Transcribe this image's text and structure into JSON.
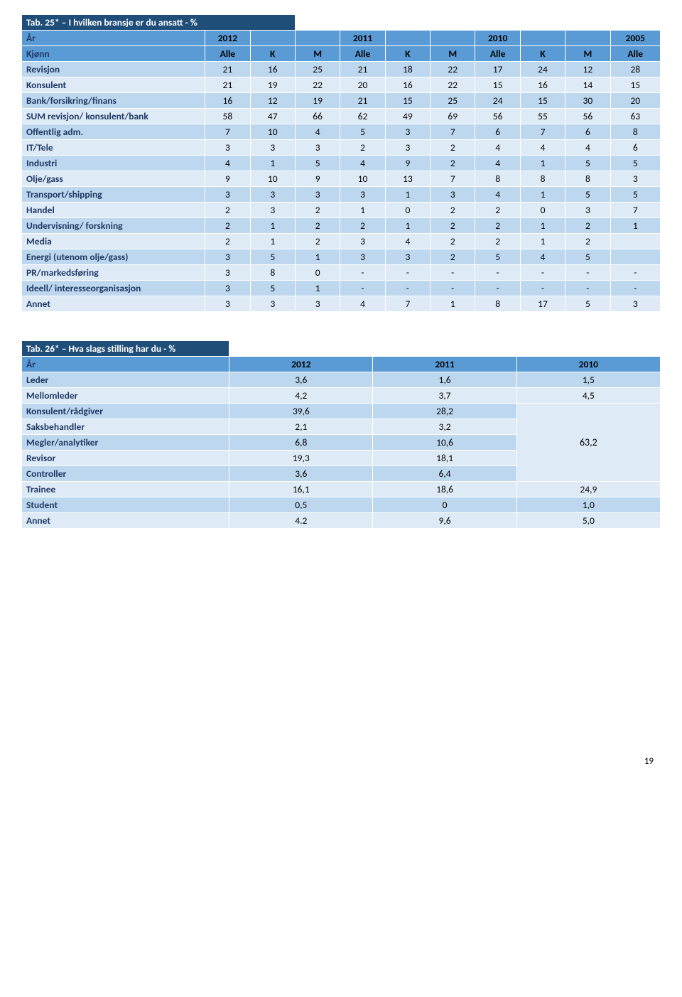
{
  "colors": {
    "darkBlue": "#1f4e79",
    "midBlue": "#5b9bd5",
    "lightBlue": "#bdd7ee",
    "paleBlue": "#deebf7",
    "rowLabelText": "#1f3864",
    "white": "#ffffff",
    "black": "#000000"
  },
  "table1": {
    "title": "Tab. 25* – I hvilken bransje er du ansatt - %",
    "yearRow": {
      "label": "År",
      "cells": [
        "2012",
        "",
        "",
        "2011",
        "",
        "",
        "2010",
        "",
        "",
        "2005"
      ]
    },
    "kjRow": {
      "label": "Kjønn",
      "cells": [
        "Alle",
        "K",
        "M",
        "Alle",
        "K",
        "M",
        "Alle",
        "K",
        "M",
        "Alle"
      ]
    },
    "rows": [
      {
        "label": "Revisjon",
        "cells": [
          "21",
          "16",
          "25",
          "21",
          "18",
          "22",
          "17",
          "24",
          "12",
          "28"
        ]
      },
      {
        "label": "Konsulent",
        "cells": [
          "21",
          "19",
          "22",
          "20",
          "16",
          "22",
          "15",
          "16",
          "14",
          "15"
        ]
      },
      {
        "label": "Bank/forsikring/finans",
        "cells": [
          "16",
          "12",
          "19",
          "21",
          "15",
          "25",
          "24",
          "15",
          "30",
          "20"
        ]
      },
      {
        "label": "SUM   revisjon/ konsulent/bank",
        "cells": [
          "58",
          "47",
          "66",
          "62",
          "49",
          "69",
          "56",
          "55",
          "56",
          "63"
        ]
      },
      {
        "label": "Offentlig adm.",
        "cells": [
          "7",
          "10",
          "4",
          "5",
          "3",
          "7",
          "6",
          "7",
          "6",
          "8"
        ]
      },
      {
        "label": "IT/Tele",
        "cells": [
          "3",
          "3",
          "3",
          "2",
          "3",
          "2",
          "4",
          "4",
          "4",
          "6"
        ]
      },
      {
        "label": "Industri",
        "cells": [
          "4",
          "1",
          "5",
          "4",
          "9",
          "2",
          "4",
          "1",
          "5",
          "5"
        ]
      },
      {
        "label": "Olje/gass",
        "cells": [
          "9",
          "10",
          "9",
          "10",
          "13",
          "7",
          "8",
          "8",
          "8",
          "3"
        ]
      },
      {
        "label": "Transport/shipping",
        "cells": [
          "3",
          "3",
          "3",
          "3",
          "1",
          "3",
          "4",
          "1",
          "5",
          "5"
        ]
      },
      {
        "label": "Handel",
        "cells": [
          "2",
          "3",
          "2",
          "1",
          "0",
          "2",
          "2",
          "0",
          "3",
          "7"
        ]
      },
      {
        "label": "Undervisning/ forskning",
        "cells": [
          "2",
          "1",
          "2",
          "2",
          "1",
          "2",
          "2",
          "1",
          "2",
          "1"
        ]
      },
      {
        "label": "Media",
        "cells": [
          "2",
          "1",
          "2",
          "3",
          "4",
          "2",
          "2",
          "1",
          "2",
          ""
        ]
      },
      {
        "label": "Energi (utenom olje/gass)",
        "cells": [
          "3",
          "5",
          "1",
          "3",
          "3",
          "2",
          "5",
          "4",
          "5",
          ""
        ]
      },
      {
        "label": "PR/markedsføring",
        "cells": [
          "3",
          "8",
          "0",
          "-",
          "-",
          "-",
          "-",
          "-",
          "-",
          "-"
        ]
      },
      {
        "label": "Ideell/ interesseorganisasjon",
        "cells": [
          "3",
          "5",
          "1",
          "-",
          "-",
          "-",
          "-",
          "-",
          "-",
          "-"
        ]
      },
      {
        "label": "Annet",
        "cells": [
          "3",
          "3",
          "3",
          "4",
          "7",
          "1",
          "8",
          "17",
          "5",
          "3"
        ]
      }
    ]
  },
  "table2": {
    "title": "Tab. 26* – Hva slags stilling har du - %",
    "yearRow": {
      "label": "År",
      "cells": [
        "2012",
        "2011",
        "2010"
      ]
    },
    "rows": [
      {
        "label": "Leder",
        "cells": [
          "3,6",
          "1,6",
          "1,5"
        ],
        "merge": null
      },
      {
        "label": "Mellomleder",
        "cells": [
          "4,2",
          "3,7",
          "4,5"
        ],
        "merge": null
      },
      {
        "label": "Konsulent/rådgiver",
        "cells": [
          "39,6",
          "28,2"
        ],
        "merge": {
          "value": "63,2",
          "rowspan": 5
        }
      },
      {
        "label": "Saksbehandler",
        "cells": [
          "2,1",
          "3,2"
        ],
        "merge": "skip"
      },
      {
        "label": "Megler/analytiker",
        "cells": [
          "6,8",
          "10,6"
        ],
        "merge": "skip"
      },
      {
        "label": "Revisor",
        "cells": [
          "19,3",
          "18,1"
        ],
        "merge": "skip"
      },
      {
        "label": "Controller",
        "cells": [
          "3,6",
          "6,4"
        ],
        "merge": "skip"
      },
      {
        "label": "Trainee",
        "cells": [
          "16,1",
          "18,6",
          "24,9"
        ],
        "merge": null
      },
      {
        "label": "Student",
        "cells": [
          "0,5",
          "0",
          "1,0"
        ],
        "merge": null
      },
      {
        "label": "Annet",
        "cells": [
          "4.2",
          "9,6",
          "5,0"
        ],
        "merge": null
      }
    ]
  },
  "pageNumber": "19"
}
